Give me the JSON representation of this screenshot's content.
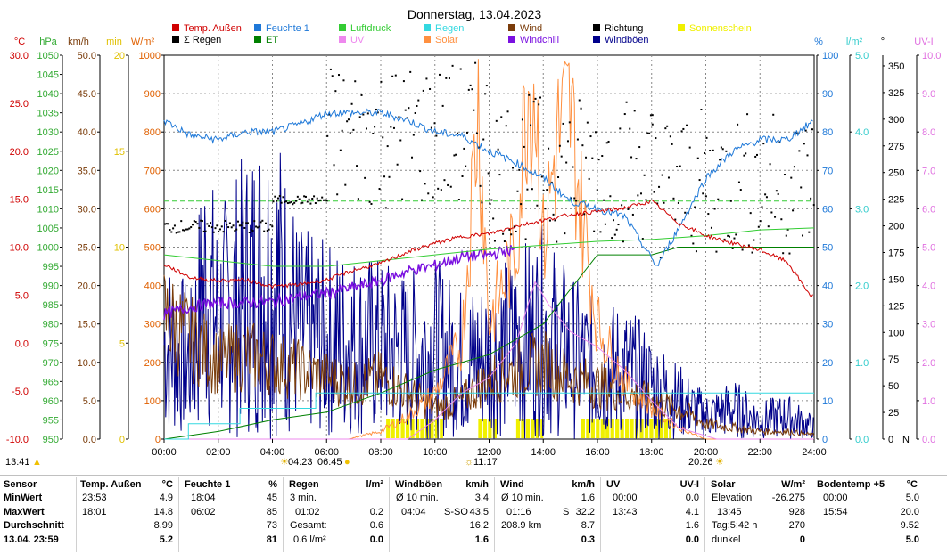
{
  "chart_data": {
    "type": "line",
    "title": "Donnerstag, 13.04.2023",
    "x_ticks": [
      "00:00",
      "02:00",
      "04:00",
      "06:00",
      "08:00",
      "10:00",
      "12:00",
      "14:00",
      "16:00",
      "18:00",
      "20:00",
      "22:00",
      "24:00"
    ],
    "legend": [
      {
        "name": "Temp. Außen",
        "color": "#d00000"
      },
      {
        "name": "Feuchte 1",
        "color": "#1e78d8"
      },
      {
        "name": "Luftdruck",
        "color": "#33cc33"
      },
      {
        "name": "Regen",
        "color": "#33d8e0"
      },
      {
        "name": "Wind",
        "color": "#7a3c0a"
      },
      {
        "name": "Richtung",
        "color": "#000000"
      },
      {
        "name": "Sonnenschein",
        "color": "#f0f000"
      },
      {
        "name": "Σ Regen",
        "color": "#000000"
      },
      {
        "name": "ET",
        "color": "#008000"
      },
      {
        "name": "UV",
        "color": "#ee88ee"
      },
      {
        "name": "Solar",
        "color": "#ff9040"
      },
      {
        "name": "Windchill",
        "color": "#7a10e0"
      },
      {
        "name": "Windböen",
        "color": "#00008b"
      }
    ],
    "axes_left": [
      {
        "unit": "°C",
        "color": "#d00000",
        "ticks": [
          "30.0",
          "25.0",
          "20.0",
          "15.0",
          "10.0",
          "5.0",
          "0.0",
          "-5.0",
          "-10.0"
        ],
        "ylim": [
          -10,
          30
        ]
      },
      {
        "unit": "hPa",
        "color": "#33aa33",
        "ticks": [
          "1050",
          "1045",
          "1040",
          "1035",
          "1030",
          "1025",
          "1020",
          "1015",
          "1010",
          "1005",
          "1000",
          "995",
          "990",
          "985",
          "980",
          "975",
          "970",
          "965",
          "960",
          "955",
          "950"
        ],
        "ylim": [
          950,
          1050
        ]
      },
      {
        "unit": "km/h",
        "color": "#7a3c0a",
        "ticks": [
          "50.0",
          "45.0",
          "40.0",
          "35.0",
          "30.0",
          "25.0",
          "20.0",
          "15.0",
          "10.0",
          "5.0",
          "0.0"
        ],
        "ylim": [
          0,
          50
        ]
      },
      {
        "unit": "min",
        "color": "#e0c000",
        "ticks": [
          "20",
          "15",
          "10",
          "5",
          "0"
        ],
        "ylim": [
          0,
          20
        ]
      },
      {
        "unit": "W/m²",
        "color": "#e06000",
        "ticks": [
          "1000",
          "900",
          "800",
          "700",
          "600",
          "500",
          "400",
          "300",
          "200",
          "100",
          "0"
        ],
        "ylim": [
          0,
          1000
        ]
      }
    ],
    "axes_right": [
      {
        "unit": "%",
        "color": "#1e78d8",
        "ticks": [
          "100",
          "90",
          "80",
          "70",
          "60",
          "50",
          "40",
          "30",
          "20",
          "10",
          "0"
        ],
        "ylim": [
          0,
          100
        ]
      },
      {
        "unit": "l/m²",
        "color": "#33cccc",
        "ticks": [
          "5.0",
          "4.0",
          "3.0",
          "2.0",
          "1.0",
          "0.0"
        ],
        "ylim": [
          0,
          5
        ]
      },
      {
        "unit": "°",
        "color": "#000000",
        "ticks": [
          "350",
          "325",
          "300",
          "275",
          "250",
          "225",
          "200",
          "175",
          "150",
          "125",
          "100",
          "75",
          "50",
          "25",
          "0"
        ],
        "ylim": [
          0,
          360
        ],
        "extra": "N"
      },
      {
        "unit": "UV-I",
        "color": "#e070e0",
        "ticks": [
          "10.0",
          "9.0",
          "8.0",
          "7.0",
          "6.0",
          "5.0",
          "4.0",
          "3.0",
          "2.0",
          "1.0",
          "0.0"
        ],
        "ylim": [
          0,
          10
        ]
      }
    ],
    "series_points": {
      "temperature": [
        [
          0,
          8.2
        ],
        [
          1,
          6.8
        ],
        [
          2,
          6.5
        ],
        [
          3,
          6.6
        ],
        [
          4,
          5.9
        ],
        [
          5,
          6.1
        ],
        [
          6,
          6.6
        ],
        [
          7,
          7.6
        ],
        [
          8,
          8.3
        ],
        [
          9,
          9.5
        ],
        [
          10,
          10.4
        ],
        [
          11,
          11.1
        ],
        [
          12,
          11.4
        ],
        [
          13,
          12.2
        ],
        [
          14,
          12.8
        ],
        [
          15,
          13.4
        ],
        [
          16,
          13.7
        ],
        [
          17,
          14.1
        ],
        [
          18,
          14.8
        ],
        [
          19,
          12.5
        ],
        [
          20,
          11.2
        ],
        [
          21,
          10.4
        ],
        [
          22,
          9.7
        ],
        [
          23,
          8.5
        ],
        [
          23.88,
          4.9
        ],
        [
          24,
          4.9
        ]
      ],
      "humidity": [
        [
          0,
          83
        ],
        [
          1,
          79
        ],
        [
          2,
          78
        ],
        [
          3,
          80
        ],
        [
          4,
          80
        ],
        [
          5,
          82
        ],
        [
          6,
          85
        ],
        [
          7,
          85
        ],
        [
          8,
          85
        ],
        [
          9,
          83
        ],
        [
          10,
          80
        ],
        [
          11,
          79
        ],
        [
          12,
          75
        ],
        [
          13,
          72
        ],
        [
          14,
          68
        ],
        [
          15,
          62
        ],
        [
          16,
          60
        ],
        [
          17,
          58
        ],
        [
          18,
          47
        ],
        [
          18.2,
          45
        ],
        [
          19,
          55
        ],
        [
          20,
          68
        ],
        [
          21,
          75
        ],
        [
          22,
          78
        ],
        [
          23,
          78
        ],
        [
          24,
          83
        ]
      ],
      "pressure": [
        [
          0,
          998
        ],
        [
          2,
          996.5
        ],
        [
          4,
          995
        ],
        [
          6,
          995
        ],
        [
          8,
          996.5
        ],
        [
          10,
          998
        ],
        [
          12,
          999.5
        ],
        [
          14,
          1000.5
        ],
        [
          16,
          1001.5
        ],
        [
          18,
          1002
        ],
        [
          20,
          1003
        ],
        [
          22,
          1004.5
        ],
        [
          24,
          1005
        ]
      ],
      "pressure_ref": 1012,
      "rain_sum": [
        [
          0,
          0
        ],
        [
          0.9,
          0
        ],
        [
          0.9,
          0.2
        ],
        [
          2.8,
          0.2
        ],
        [
          2.8,
          0.4
        ],
        [
          5.6,
          0.4
        ],
        [
          5.6,
          0.6
        ],
        [
          24,
          0.6
        ]
      ],
      "et": [
        [
          0,
          0
        ],
        [
          1,
          0.05
        ],
        [
          2,
          0.1
        ],
        [
          4,
          0.25
        ],
        [
          6,
          0.35
        ],
        [
          8,
          0.6
        ],
        [
          10,
          0.9
        ],
        [
          12,
          1.1
        ],
        [
          14,
          1.5
        ],
        [
          16,
          2.4
        ],
        [
          18,
          2.4
        ],
        [
          19,
          2.5
        ],
        [
          22,
          2.5
        ],
        [
          24,
          2.5
        ]
      ],
      "uv": [
        [
          0,
          0
        ],
        [
          9,
          0
        ],
        [
          10,
          0.5
        ],
        [
          11,
          1.2
        ],
        [
          12,
          1.6
        ],
        [
          13,
          2.5
        ],
        [
          13.7,
          4.1
        ],
        [
          14.2,
          3.5
        ],
        [
          15,
          2.8
        ],
        [
          16,
          2.4
        ],
        [
          17,
          1.8
        ],
        [
          18,
          1
        ],
        [
          19,
          0.3
        ],
        [
          20.4,
          0
        ],
        [
          24,
          0
        ]
      ],
      "solar": [
        [
          0,
          0
        ],
        [
          6.8,
          0
        ],
        [
          8,
          20
        ],
        [
          9,
          60
        ],
        [
          10,
          120
        ],
        [
          11,
          250
        ],
        [
          11.6,
          880
        ],
        [
          12,
          300
        ],
        [
          13,
          500
        ],
        [
          13.4,
          920
        ],
        [
          13.7,
          928
        ],
        [
          14,
          500
        ],
        [
          14.5,
          780
        ],
        [
          15,
          850
        ],
        [
          15.4,
          600
        ],
        [
          16,
          300
        ],
        [
          17,
          150
        ],
        [
          18,
          80
        ],
        [
          19,
          30
        ],
        [
          20,
          0
        ],
        [
          24,
          0
        ]
      ],
      "windchill": [
        [
          0,
          3
        ],
        [
          1,
          3.8
        ],
        [
          2,
          4.2
        ],
        [
          3,
          4.2
        ],
        [
          4,
          4.3
        ],
        [
          5,
          4.8
        ],
        [
          6,
          5.2
        ],
        [
          7,
          5.8
        ],
        [
          8,
          6.5
        ],
        [
          9,
          7.5
        ],
        [
          10,
          8.1
        ],
        [
          11,
          9
        ],
        [
          12,
          9.2
        ],
        [
          12.5,
          9.5
        ],
        [
          13,
          9.8
        ]
      ],
      "wind_avg": [
        [
          0,
          16
        ],
        [
          1,
          13
        ],
        [
          2,
          10
        ],
        [
          3,
          11
        ],
        [
          4,
          10
        ],
        [
          5,
          9
        ],
        [
          6,
          8
        ],
        [
          7,
          7
        ],
        [
          8,
          8
        ],
        [
          9,
          6
        ],
        [
          10,
          4
        ],
        [
          11,
          5
        ],
        [
          12,
          8
        ],
        [
          13,
          9
        ],
        [
          14,
          10
        ],
        [
          15,
          8
        ],
        [
          16,
          7
        ],
        [
          17,
          6
        ],
        [
          18,
          5
        ],
        [
          19,
          4
        ],
        [
          20,
          2
        ],
        [
          21,
          1.5
        ],
        [
          22,
          1
        ],
        [
          23,
          1
        ],
        [
          24,
          0.5
        ]
      ],
      "gust_max": [
        [
          0,
          25
        ],
        [
          1,
          20
        ],
        [
          1.5,
          40
        ],
        [
          2,
          30
        ],
        [
          3,
          38
        ],
        [
          3.7,
          43.5
        ],
        [
          4.3,
          40
        ],
        [
          5,
          28
        ],
        [
          6,
          26
        ],
        [
          7,
          25
        ],
        [
          8,
          24
        ],
        [
          9,
          22
        ],
        [
          10,
          24
        ],
        [
          11,
          20
        ],
        [
          12,
          22
        ],
        [
          13,
          25
        ],
        [
          14,
          28
        ],
        [
          15,
          22
        ],
        [
          16,
          18
        ],
        [
          17,
          18
        ],
        [
          18,
          14
        ],
        [
          19,
          10
        ],
        [
          20,
          6
        ],
        [
          21,
          8
        ],
        [
          22,
          5
        ],
        [
          23,
          6
        ],
        [
          24,
          3
        ]
      ],
      "direction_bands": [
        [
          0,
          4,
          200
        ],
        [
          4,
          6,
          225
        ],
        [
          6,
          12,
          285
        ],
        [
          12,
          18,
          255
        ],
        [
          18,
          20,
          240
        ],
        [
          20,
          24,
          240
        ]
      ],
      "sunshine": [
        [
          8.2,
          10.3
        ],
        [
          11.6,
          12.3
        ],
        [
          13.0,
          14.0
        ],
        [
          15.4,
          18.7
        ]
      ]
    }
  },
  "markers": {
    "sunrise_left": "13:41",
    "sunrise": "04:23",
    "dawn": "06:45",
    "solar_noon": "11:17",
    "sunset": "20:26"
  },
  "stats": {
    "sensor": {
      "title": "Sensor",
      "rows": [
        "MinWert",
        "MaxWert",
        "Durchschnitt",
        "13.04.  23:59"
      ]
    },
    "temp": {
      "title": "Temp. Außen",
      "unit": "°C",
      "rows": [
        [
          "23:53",
          "4.9"
        ],
        [
          "18:01",
          "14.8"
        ],
        [
          "",
          "8.99"
        ],
        [
          "",
          "5.2"
        ]
      ]
    },
    "feuchte": {
      "title": "Feuchte 1",
      "unit": "%",
      "rows": [
        [
          "18:04",
          "45"
        ],
        [
          "06:02",
          "85"
        ],
        [
          "",
          "73"
        ],
        [
          "",
          "81"
        ]
      ]
    },
    "regen": {
      "title": "Regen",
      "unit": "l/m²",
      "rows": [
        [
          "3 min.",
          ""
        ],
        [
          "01:02",
          "0.2"
        ],
        [
          "Gesamt:",
          "0.6"
        ],
        [
          "0.6 l/m²",
          "0.0"
        ]
      ]
    },
    "boeen": {
      "title": "Windböen",
      "unit": "km/h",
      "rows": [
        [
          "Ø 10 min.",
          "",
          "3.4"
        ],
        [
          "04:04",
          "S-SO",
          "43.5"
        ],
        [
          "",
          "",
          "16.2"
        ],
        [
          "",
          "",
          "1.6"
        ]
      ]
    },
    "wind": {
      "title": "Wind",
      "unit": "km/h",
      "rows": [
        [
          "Ø 10 min.",
          "",
          "1.6"
        ],
        [
          "01:16",
          "S",
          "32.2"
        ],
        [
          "208.9 km",
          "",
          "8.7"
        ],
        [
          "",
          "",
          "0.3"
        ]
      ]
    },
    "uv": {
      "title": "UV",
      "unit": "UV-I",
      "rows": [
        [
          "00:00",
          "0.0"
        ],
        [
          "13:43",
          "4.1"
        ],
        [
          "",
          "1.6"
        ],
        [
          "",
          "0.0"
        ]
      ]
    },
    "solar": {
      "title": "Solar",
      "unit": "W/m²",
      "rows": [
        [
          "Elevation",
          "-26.275"
        ],
        [
          "13:45",
          "928"
        ],
        [
          "Tag:5:42 h",
          "270"
        ],
        [
          "dunkel",
          "0"
        ]
      ]
    },
    "boden": {
      "title": "Bodentemp +5",
      "unit": "°C",
      "rows": [
        [
          "00:00",
          "5.0"
        ],
        [
          "15:54",
          "20.0"
        ],
        [
          "",
          "9.52"
        ],
        [
          "",
          "5.0"
        ]
      ]
    }
  }
}
